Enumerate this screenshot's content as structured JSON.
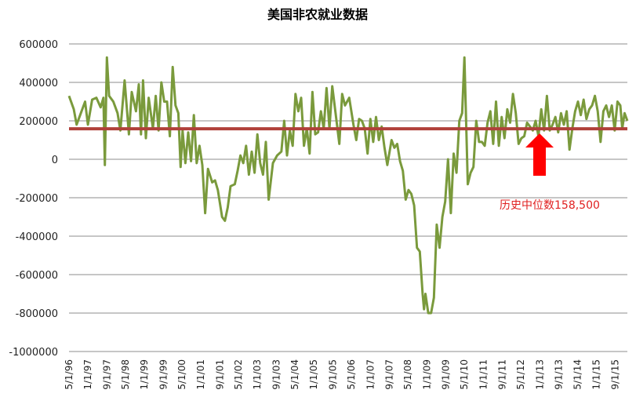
{
  "chart_data": {
    "type": "line",
    "title": "美国非农就业数据",
    "ylim": [
      -1000000,
      600000
    ],
    "yticks": [
      600000,
      400000,
      200000,
      0,
      -200000,
      -400000,
      -600000,
      -800000,
      -1000000
    ],
    "ytick_labels": [
      "600000",
      "400000",
      "200000",
      "0",
      "-200000",
      "-400000",
      "-600000",
      "-800000",
      "-1000000"
    ],
    "xlim": [
      1996.33,
      2016.1
    ],
    "xticks": [
      {
        "label": "5/1/96",
        "x": 1996.33
      },
      {
        "label": "1/1/97",
        "x": 1997.0
      },
      {
        "label": "9/1/97",
        "x": 1997.67
      },
      {
        "label": "5/1/98",
        "x": 1998.33
      },
      {
        "label": "1/1/99",
        "x": 1999.0
      },
      {
        "label": "9/1/99",
        "x": 1999.67
      },
      {
        "label": "5/1/00",
        "x": 2000.33
      },
      {
        "label": "1/1/01",
        "x": 2001.0
      },
      {
        "label": "9/1/01",
        "x": 2001.67
      },
      {
        "label": "5/1/02",
        "x": 2002.33
      },
      {
        "label": "1/1/03",
        "x": 2003.0
      },
      {
        "label": "9/1/03",
        "x": 2003.67
      },
      {
        "label": "5/1/04",
        "x": 2004.33
      },
      {
        "label": "1/1/05",
        "x": 2005.0
      },
      {
        "label": "9/1/05",
        "x": 2005.67
      },
      {
        "label": "5/1/06",
        "x": 2006.33
      },
      {
        "label": "1/1/07",
        "x": 2007.0
      },
      {
        "label": "9/1/07",
        "x": 2007.67
      },
      {
        "label": "5/1/08",
        "x": 2008.33
      },
      {
        "label": "1/1/09",
        "x": 2009.0
      },
      {
        "label": "9/1/09",
        "x": 2009.67
      },
      {
        "label": "5/1/10",
        "x": 2010.33
      },
      {
        "label": "1/1/11",
        "x": 2011.0
      },
      {
        "label": "9/1/11",
        "x": 2011.67
      },
      {
        "label": "5/1/12",
        "x": 2012.33
      },
      {
        "label": "1/1/13",
        "x": 2013.0
      },
      {
        "label": "9/1/13",
        "x": 2013.67
      },
      {
        "label": "5/1/14",
        "x": 2014.33
      },
      {
        "label": "1/1/15",
        "x": 2015.0
      },
      {
        "label": "9/1/15",
        "x": 2015.67
      }
    ],
    "grid": true,
    "legend": "none",
    "median": 158500,
    "annotation": "历史中位数158,500",
    "colors": {
      "series": "#7a9a3c",
      "median": "#b0403a",
      "arrow": "#ff0000",
      "annotation": "#e02020",
      "grid": "#8c8c8c"
    },
    "series": [
      {
        "points": [
          [
            1996.33,
            330000
          ],
          [
            1996.5,
            260000
          ],
          [
            1996.6,
            180000
          ],
          [
            1996.75,
            240000
          ],
          [
            1996.9,
            300000
          ],
          [
            1997.0,
            180000
          ],
          [
            1997.15,
            310000
          ],
          [
            1997.3,
            320000
          ],
          [
            1997.45,
            270000
          ],
          [
            1997.55,
            320000
          ],
          [
            1997.6,
            -30000
          ],
          [
            1997.67,
            530000
          ],
          [
            1997.75,
            330000
          ],
          [
            1997.9,
            300000
          ],
          [
            1998.05,
            240000
          ],
          [
            1998.15,
            150000
          ],
          [
            1998.3,
            410000
          ],
          [
            1998.45,
            130000
          ],
          [
            1998.55,
            350000
          ],
          [
            1998.7,
            250000
          ],
          [
            1998.8,
            390000
          ],
          [
            1998.88,
            130000
          ],
          [
            1998.95,
            410000
          ],
          [
            1999.05,
            110000
          ],
          [
            1999.15,
            320000
          ],
          [
            1999.3,
            160000
          ],
          [
            1999.4,
            330000
          ],
          [
            1999.5,
            150000
          ],
          [
            1999.6,
            400000
          ],
          [
            1999.7,
            300000
          ],
          [
            1999.8,
            300000
          ],
          [
            1999.9,
            120000
          ],
          [
            2000.0,
            480000
          ],
          [
            2000.1,
            280000
          ],
          [
            2000.2,
            240000
          ],
          [
            2000.28,
            -40000
          ],
          [
            2000.35,
            150000
          ],
          [
            2000.45,
            -20000
          ],
          [
            2000.55,
            140000
          ],
          [
            2000.65,
            -10000
          ],
          [
            2000.75,
            230000
          ],
          [
            2000.85,
            -20000
          ],
          [
            2000.95,
            70000
          ],
          [
            2001.05,
            -30000
          ],
          [
            2001.15,
            -280000
          ],
          [
            2001.25,
            -50000
          ],
          [
            2001.4,
            -120000
          ],
          [
            2001.5,
            -110000
          ],
          [
            2001.6,
            -160000
          ],
          [
            2001.75,
            -300000
          ],
          [
            2001.85,
            -320000
          ],
          [
            2001.95,
            -250000
          ],
          [
            2002.05,
            -140000
          ],
          [
            2002.2,
            -130000
          ],
          [
            2002.3,
            -60000
          ],
          [
            2002.4,
            20000
          ],
          [
            2002.5,
            -20000
          ],
          [
            2002.6,
            70000
          ],
          [
            2002.7,
            -80000
          ],
          [
            2002.8,
            40000
          ],
          [
            2002.9,
            -70000
          ],
          [
            2003.0,
            130000
          ],
          [
            2003.1,
            -20000
          ],
          [
            2003.2,
            -80000
          ],
          [
            2003.3,
            90000
          ],
          [
            2003.4,
            -210000
          ],
          [
            2003.55,
            -20000
          ],
          [
            2003.7,
            20000
          ],
          [
            2003.85,
            40000
          ],
          [
            2003.95,
            200000
          ],
          [
            2004.05,
            20000
          ],
          [
            2004.15,
            150000
          ],
          [
            2004.25,
            70000
          ],
          [
            2004.35,
            340000
          ],
          [
            2004.45,
            250000
          ],
          [
            2004.55,
            320000
          ],
          [
            2004.65,
            70000
          ],
          [
            2004.75,
            160000
          ],
          [
            2004.85,
            30000
          ],
          [
            2004.95,
            350000
          ],
          [
            2005.05,
            130000
          ],
          [
            2005.15,
            140000
          ],
          [
            2005.25,
            250000
          ],
          [
            2005.35,
            160000
          ],
          [
            2005.45,
            370000
          ],
          [
            2005.55,
            160000
          ],
          [
            2005.65,
            380000
          ],
          [
            2005.8,
            200000
          ],
          [
            2005.9,
            80000
          ],
          [
            2006.0,
            340000
          ],
          [
            2006.1,
            280000
          ],
          [
            2006.25,
            320000
          ],
          [
            2006.4,
            180000
          ],
          [
            2006.5,
            100000
          ],
          [
            2006.6,
            210000
          ],
          [
            2006.7,
            200000
          ],
          [
            2006.8,
            160000
          ],
          [
            2006.9,
            30000
          ],
          [
            2007.0,
            210000
          ],
          [
            2007.1,
            90000
          ],
          [
            2007.2,
            220000
          ],
          [
            2007.3,
            100000
          ],
          [
            2007.4,
            170000
          ],
          [
            2007.5,
            60000
          ],
          [
            2007.6,
            -30000
          ],
          [
            2007.75,
            100000
          ],
          [
            2007.85,
            60000
          ],
          [
            2007.95,
            80000
          ],
          [
            2008.05,
            -10000
          ],
          [
            2008.15,
            -60000
          ],
          [
            2008.25,
            -210000
          ],
          [
            2008.35,
            -160000
          ],
          [
            2008.45,
            -180000
          ],
          [
            2008.55,
            -240000
          ],
          [
            2008.65,
            -460000
          ],
          [
            2008.75,
            -480000
          ],
          [
            2008.85,
            -700000
          ],
          [
            2008.9,
            -780000
          ],
          [
            2008.95,
            -700000
          ],
          [
            2009.05,
            -800000
          ],
          [
            2009.15,
            -800000
          ],
          [
            2009.25,
            -720000
          ],
          [
            2009.35,
            -340000
          ],
          [
            2009.45,
            -460000
          ],
          [
            2009.55,
            -300000
          ],
          [
            2009.65,
            -220000
          ],
          [
            2009.75,
            0
          ],
          [
            2009.85,
            -280000
          ],
          [
            2009.95,
            30000
          ],
          [
            2010.05,
            -70000
          ],
          [
            2010.15,
            200000
          ],
          [
            2010.25,
            240000
          ],
          [
            2010.33,
            530000
          ],
          [
            2010.45,
            -130000
          ],
          [
            2010.55,
            -70000
          ],
          [
            2010.65,
            -40000
          ],
          [
            2010.75,
            200000
          ],
          [
            2010.85,
            90000
          ],
          [
            2010.95,
            90000
          ],
          [
            2011.05,
            70000
          ],
          [
            2011.15,
            190000
          ],
          [
            2011.25,
            250000
          ],
          [
            2011.35,
            80000
          ],
          [
            2011.45,
            300000
          ],
          [
            2011.55,
            70000
          ],
          [
            2011.65,
            220000
          ],
          [
            2011.75,
            110000
          ],
          [
            2011.85,
            260000
          ],
          [
            2011.95,
            190000
          ],
          [
            2012.05,
            340000
          ],
          [
            2012.15,
            240000
          ],
          [
            2012.25,
            80000
          ],
          [
            2012.35,
            110000
          ],
          [
            2012.45,
            120000
          ],
          [
            2012.55,
            190000
          ],
          [
            2012.65,
            170000
          ],
          [
            2012.75,
            150000
          ],
          [
            2012.85,
            200000
          ],
          [
            2012.95,
            120000
          ],
          [
            2013.05,
            260000
          ],
          [
            2013.15,
            150000
          ],
          [
            2013.25,
            330000
          ],
          [
            2013.35,
            150000
          ],
          [
            2013.45,
            180000
          ],
          [
            2013.55,
            220000
          ],
          [
            2013.65,
            140000
          ],
          [
            2013.75,
            240000
          ],
          [
            2013.85,
            180000
          ],
          [
            2013.95,
            250000
          ],
          [
            2014.05,
            50000
          ],
          [
            2014.15,
            160000
          ],
          [
            2014.25,
            250000
          ],
          [
            2014.35,
            300000
          ],
          [
            2014.45,
            230000
          ],
          [
            2014.55,
            310000
          ],
          [
            2014.65,
            210000
          ],
          [
            2014.75,
            260000
          ],
          [
            2014.85,
            280000
          ],
          [
            2014.95,
            330000
          ],
          [
            2015.05,
            250000
          ],
          [
            2015.15,
            90000
          ],
          [
            2015.25,
            250000
          ],
          [
            2015.35,
            280000
          ],
          [
            2015.45,
            220000
          ],
          [
            2015.55,
            280000
          ],
          [
            2015.65,
            150000
          ],
          [
            2015.75,
            300000
          ],
          [
            2015.85,
            280000
          ],
          [
            2015.92,
            160000
          ],
          [
            2016.0,
            240000
          ],
          [
            2016.1,
            200000
          ]
        ]
      }
    ]
  }
}
